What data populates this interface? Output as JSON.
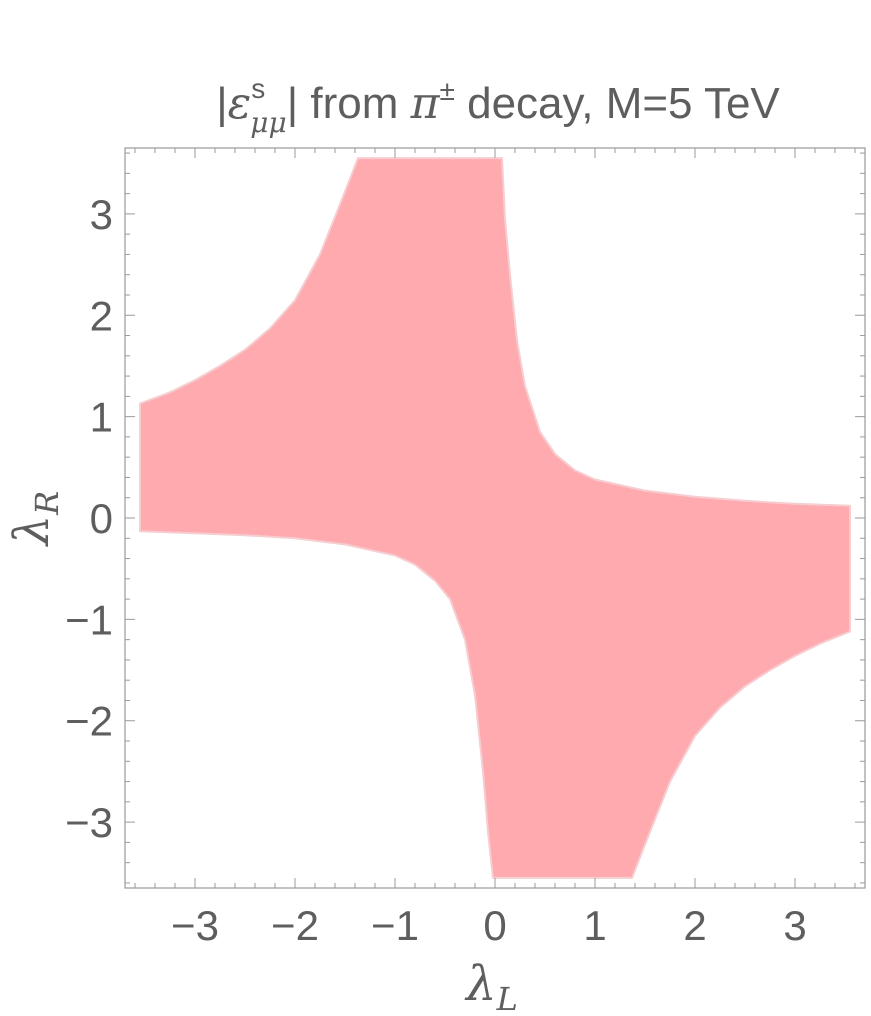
{
  "chart_data": {
    "type": "area",
    "title": {
      "abs_open": "|",
      "symbol": "ε",
      "sup": "s",
      "sub": "μμ",
      "abs_close": "|",
      "middle": " from ",
      "pi": "π",
      "pi_sup": "±",
      "tail": " decay, M=5 TeV"
    },
    "xlabel": {
      "main": "λ",
      "sub": "L"
    },
    "ylabel": {
      "main": "λ",
      "sub": "R"
    },
    "xlim": [
      -3.7,
      3.7
    ],
    "ylim": [
      -3.65,
      3.65
    ],
    "xticks": [
      {
        "value": -3,
        "label": "−3"
      },
      {
        "value": -2,
        "label": "−2"
      },
      {
        "value": -1,
        "label": "−1"
      },
      {
        "value": 0,
        "label": "0"
      },
      {
        "value": 1,
        "label": "1"
      },
      {
        "value": 2,
        "label": "2"
      },
      {
        "value": 3,
        "label": "3"
      }
    ],
    "yticks": [
      {
        "value": -3,
        "label": "−3"
      },
      {
        "value": -2,
        "label": "−2"
      },
      {
        "value": -1,
        "label": "−1"
      },
      {
        "value": 0,
        "label": "0"
      },
      {
        "value": 1,
        "label": "1"
      },
      {
        "value": 2,
        "label": "2"
      },
      {
        "value": 3,
        "label": "3"
      }
    ],
    "region": {
      "name": "",
      "color": "#ffaaae",
      "edge_color": "#f6cdd0",
      "plot_range": [
        -3.55,
        3.55
      ],
      "boundary": [
        [
          -3.55,
          -0.13
        ],
        [
          -3.0,
          -0.15
        ],
        [
          -2.5,
          -0.17
        ],
        [
          -2.0,
          -0.2
        ],
        [
          -1.5,
          -0.26
        ],
        [
          -1.0,
          -0.37
        ],
        [
          -0.8,
          -0.46
        ],
        [
          -0.6,
          -0.62
        ],
        [
          -0.45,
          -0.8
        ],
        [
          -0.3,
          -1.2
        ],
        [
          -0.2,
          -1.75
        ],
        [
          -0.12,
          -2.5
        ],
        [
          -0.07,
          -3.1
        ],
        [
          -0.02,
          -3.55
        ],
        [
          1.37,
          -3.55
        ],
        [
          1.5,
          -3.22
        ],
        [
          1.75,
          -2.6
        ],
        [
          2.0,
          -2.15
        ],
        [
          2.25,
          -1.87
        ],
        [
          2.5,
          -1.66
        ],
        [
          2.75,
          -1.5
        ],
        [
          3.0,
          -1.36
        ],
        [
          3.25,
          -1.24
        ],
        [
          3.55,
          -1.12
        ],
        [
          3.55,
          0.12
        ],
        [
          3.0,
          0.14
        ],
        [
          2.5,
          0.17
        ],
        [
          2.0,
          0.21
        ],
        [
          1.5,
          0.27
        ],
        [
          1.0,
          0.38
        ],
        [
          0.8,
          0.47
        ],
        [
          0.6,
          0.63
        ],
        [
          0.45,
          0.85
        ],
        [
          0.3,
          1.3
        ],
        [
          0.22,
          1.75
        ],
        [
          0.15,
          2.4
        ],
        [
          0.1,
          2.95
        ],
        [
          0.07,
          3.55
        ],
        [
          -1.37,
          3.55
        ],
        [
          -1.5,
          3.22
        ],
        [
          -1.75,
          2.6
        ],
        [
          -2.0,
          2.15
        ],
        [
          -2.25,
          1.87
        ],
        [
          -2.5,
          1.66
        ],
        [
          -2.75,
          1.5
        ],
        [
          -3.0,
          1.36
        ],
        [
          -3.25,
          1.24
        ],
        [
          -3.55,
          1.13
        ]
      ]
    }
  }
}
